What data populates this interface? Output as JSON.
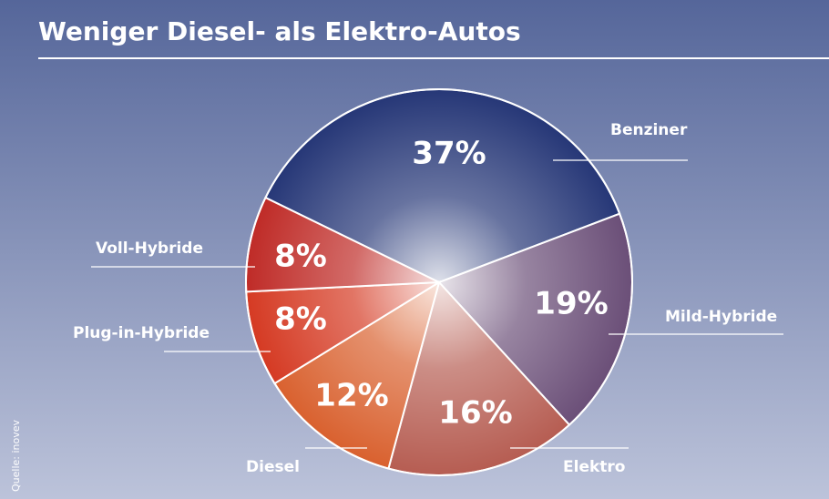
{
  "chart_data": {
    "type": "pie",
    "title": "Weniger Diesel- als Elektro-Autos",
    "source": "Quelle: inovev",
    "categories": [
      "Benziner",
      "Mild-Hybride",
      "Elektro",
      "Diesel",
      "Plug-in-Hybride",
      "Voll-Hybride"
    ],
    "values": [
      37,
      19,
      16,
      12,
      8,
      8
    ],
    "value_labels": [
      "37%",
      "19%",
      "16%",
      "12%",
      "8%",
      "8%"
    ],
    "colors": [
      "#263777",
      "#6b4f78",
      "#b65d52",
      "#d9612f",
      "#d53a23",
      "#bf2b27"
    ]
  }
}
